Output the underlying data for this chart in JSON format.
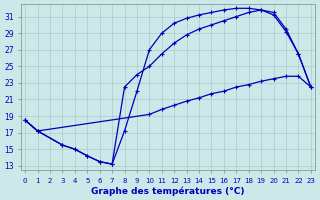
{
  "bg_color": "#cce8e8",
  "grid_color": "#aacccc",
  "line_color": "#0000bb",
  "xlabel": "Graphe des températures (°C)",
  "xlim_left": -0.3,
  "xlim_right": 23.3,
  "ylim_bottom": 12.5,
  "ylim_top": 32.5,
  "yticks": [
    13,
    15,
    17,
    19,
    21,
    23,
    25,
    27,
    29,
    31
  ],
  "xticks": [
    0,
    1,
    2,
    3,
    4,
    5,
    6,
    7,
    8,
    9,
    10,
    11,
    12,
    13,
    14,
    15,
    16,
    17,
    18,
    19,
    20,
    21,
    22,
    23
  ],
  "line1_x": [
    0,
    1,
    3,
    4,
    5,
    6,
    7,
    8,
    9,
    10,
    11,
    12,
    13,
    14,
    15,
    16,
    17,
    18,
    19,
    20,
    21,
    22,
    23
  ],
  "line1_y": [
    18.5,
    17.2,
    15.5,
    15.0,
    14.2,
    13.5,
    13.2,
    17.2,
    22.0,
    27.0,
    29.0,
    30.2,
    30.8,
    31.2,
    31.5,
    31.8,
    32.0,
    32.0,
    31.8,
    31.5,
    29.5,
    26.5,
    22.5
  ],
  "line2_x": [
    0,
    1,
    3,
    4,
    5,
    6,
    7,
    8,
    9,
    10,
    11,
    12,
    13,
    14,
    15,
    16,
    17,
    18,
    19,
    20,
    21,
    22,
    23
  ],
  "line2_y": [
    18.5,
    17.2,
    15.5,
    15.0,
    14.2,
    13.5,
    13.2,
    22.5,
    24.0,
    25.0,
    26.5,
    27.8,
    28.8,
    29.5,
    30.0,
    30.5,
    31.0,
    31.5,
    31.8,
    31.2,
    29.2,
    26.5,
    22.5
  ],
  "line3_x": [
    0,
    1,
    10,
    11,
    12,
    13,
    14,
    15,
    16,
    17,
    18,
    19,
    20,
    21,
    22,
    23
  ],
  "line3_y": [
    18.5,
    17.2,
    19.2,
    19.8,
    20.3,
    20.8,
    21.2,
    21.7,
    22.0,
    22.5,
    22.8,
    23.2,
    23.5,
    23.8,
    23.8,
    22.5
  ]
}
